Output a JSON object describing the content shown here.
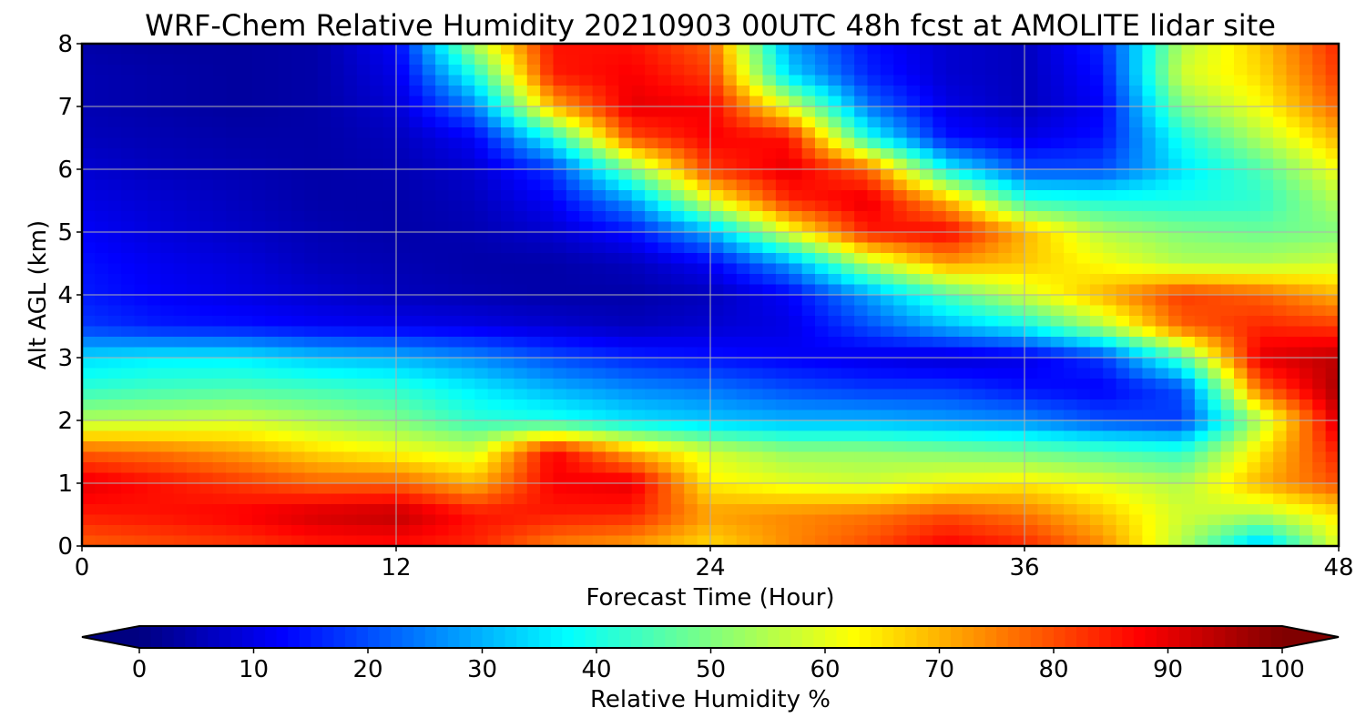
{
  "chart_data": {
    "type": "heatmap",
    "title": "WRF-Chem Relative Humidity 20210903 00UTC 48h fcst at AMOLITE lidar site",
    "xlabel": "Forecast Time (Hour)",
    "ylabel": "Alt AGL (km)",
    "xlim": [
      0,
      48
    ],
    "ylim": [
      0,
      8
    ],
    "xticks": [
      0,
      12,
      24,
      36,
      48
    ],
    "yticks": [
      0,
      1,
      2,
      3,
      4,
      5,
      6,
      7,
      8
    ],
    "grid": true,
    "colormap": "jet",
    "colorbar": {
      "label": "Relative Humidity %",
      "range": [
        0,
        100
      ],
      "ticks": [
        0,
        10,
        20,
        30,
        40,
        50,
        60,
        70,
        80,
        90,
        100
      ],
      "extend": "both",
      "orientation": "horizontal",
      "placement": "bottom"
    },
    "x": [
      0,
      3,
      6,
      9,
      12,
      15,
      18,
      21,
      24,
      27,
      30,
      33,
      36,
      39,
      42,
      45,
      48
    ],
    "y": [
      0,
      0.5,
      1,
      1.5,
      2,
      2.5,
      3,
      3.5,
      4,
      4.5,
      5,
      5.5,
      6,
      6.5,
      7,
      7.5,
      8
    ],
    "z": [
      [
        78,
        80,
        82,
        85,
        86,
        84,
        75,
        72,
        66,
        74,
        80,
        88,
        84,
        74,
        55,
        30,
        60
      ],
      [
        85,
        86,
        88,
        92,
        94,
        86,
        85,
        84,
        72,
        74,
        76,
        80,
        76,
        68,
        58,
        55,
        65
      ],
      [
        90,
        86,
        82,
        78,
        78,
        70,
        88,
        90,
        64,
        60,
        58,
        62,
        64,
        60,
        55,
        70,
        80
      ],
      [
        78,
        76,
        72,
        66,
        62,
        58,
        88,
        70,
        58,
        52,
        52,
        50,
        48,
        45,
        42,
        65,
        85
      ],
      [
        55,
        56,
        58,
        54,
        50,
        42,
        40,
        35,
        32,
        30,
        30,
        28,
        26,
        20,
        18,
        55,
        92
      ],
      [
        42,
        44,
        45,
        44,
        42,
        36,
        30,
        26,
        24,
        20,
        18,
        18,
        14,
        12,
        20,
        78,
        96
      ],
      [
        34,
        36,
        36,
        32,
        30,
        26,
        20,
        16,
        14,
        12,
        10,
        8,
        10,
        18,
        45,
        90,
        94
      ],
      [
        18,
        15,
        14,
        12,
        11,
        10,
        8,
        6,
        8,
        10,
        20,
        30,
        38,
        55,
        78,
        84,
        82
      ],
      [
        15,
        12,
        10,
        8,
        6,
        5,
        4,
        4,
        6,
        12,
        28,
        45,
        58,
        70,
        82,
        78,
        70
      ],
      [
        14,
        11,
        9,
        6,
        5,
        4,
        4,
        6,
        12,
        28,
        55,
        72,
        68,
        62,
        55,
        55,
        58
      ],
      [
        12,
        9,
        7,
        5,
        4,
        5,
        8,
        14,
        30,
        60,
        85,
        88,
        70,
        55,
        50,
        48,
        50
      ],
      [
        10,
        8,
        6,
        4,
        4,
        6,
        12,
        28,
        60,
        84,
        90,
        70,
        42,
        40,
        40,
        42,
        55
      ],
      [
        8,
        6,
        5,
        4,
        5,
        8,
        18,
        50,
        82,
        90,
        78,
        38,
        20,
        20,
        35,
        45,
        62
      ],
      [
        6,
        5,
        4,
        4,
        6,
        12,
        40,
        80,
        88,
        86,
        40,
        14,
        10,
        14,
        40,
        55,
        70
      ],
      [
        5,
        4,
        3,
        4,
        8,
        25,
        70,
        90,
        88,
        60,
        24,
        10,
        6,
        12,
        50,
        62,
        78
      ],
      [
        5,
        4,
        3,
        4,
        10,
        40,
        85,
        88,
        82,
        34,
        16,
        8,
        6,
        14,
        58,
        66,
        82
      ],
      [
        4,
        3,
        3,
        4,
        12,
        55,
        86,
        86,
        78,
        28,
        14,
        8,
        6,
        16,
        55,
        68,
        84
      ]
    ]
  }
}
